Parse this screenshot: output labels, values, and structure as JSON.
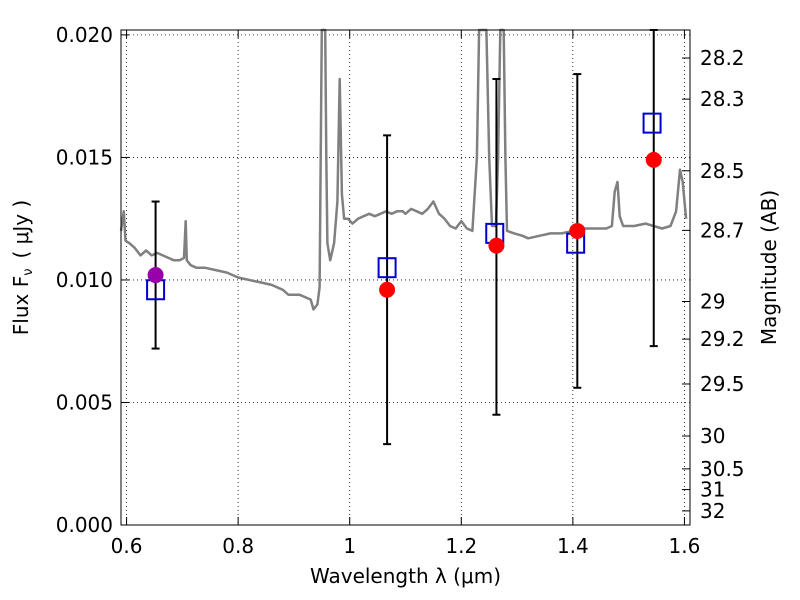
{
  "chart_data": {
    "type": "scatter",
    "xlabel": "Wavelength  λ (μm)",
    "ylabel_left": "Flux  F",
    "ylabel_left_sub": "ν",
    "ylabel_left_unit": "( μJy )",
    "ylabel_right": "Magnitude (AB)",
    "xlim": [
      0.59,
      1.61
    ],
    "ylim": [
      0.0,
      0.0202
    ],
    "grid": true,
    "x_ticks": [
      {
        "v": 0.6,
        "label": "0.6"
      },
      {
        "v": 0.8,
        "label": "0.8"
      },
      {
        "v": 1.0,
        "label": "1"
      },
      {
        "v": 1.2,
        "label": "1.2"
      },
      {
        "v": 1.4,
        "label": "1.4"
      },
      {
        "v": 1.6,
        "label": "1.6"
      }
    ],
    "y_ticks": [
      {
        "v": 0.0,
        "label": "0.000"
      },
      {
        "v": 0.005,
        "label": "0.005"
      },
      {
        "v": 0.01,
        "label": "0.010"
      },
      {
        "v": 0.015,
        "label": "0.015"
      },
      {
        "v": 0.02,
        "label": "0.020"
      }
    ],
    "right_ticks": [
      {
        "mag": 28.2,
        "label": "28.2"
      },
      {
        "mag": 28.3,
        "label": "28.3"
      },
      {
        "mag": 28.5,
        "label": "28.5"
      },
      {
        "mag": 28.7,
        "label": "28.7"
      },
      {
        "mag": 29.0,
        "label": "29"
      },
      {
        "mag": 29.2,
        "label": "29.2"
      },
      {
        "mag": 29.5,
        "label": "29.5"
      },
      {
        "mag": 30.0,
        "label": "30"
      },
      {
        "mag": 30.5,
        "label": "30.5"
      },
      {
        "mag": 31.0,
        "label": "31"
      },
      {
        "mag": 32.0,
        "label": "32"
      }
    ],
    "colors": {
      "spectrum": "#808080",
      "errorbar": "#000000",
      "observed": "#ff0000",
      "observed_first": "#9900aa",
      "model": "#0000cc"
    },
    "spectrum": [
      [
        0.59,
        0.012
      ],
      [
        0.595,
        0.0128
      ],
      [
        0.598,
        0.0116
      ],
      [
        0.605,
        0.0115
      ],
      [
        0.615,
        0.0113
      ],
      [
        0.625,
        0.011
      ],
      [
        0.635,
        0.0112
      ],
      [
        0.645,
        0.011
      ],
      [
        0.655,
        0.0111
      ],
      [
        0.665,
        0.011
      ],
      [
        0.675,
        0.0109
      ],
      [
        0.685,
        0.0108
      ],
      [
        0.695,
        0.0108
      ],
      [
        0.703,
        0.0109
      ],
      [
        0.706,
        0.0124
      ],
      [
        0.708,
        0.0108
      ],
      [
        0.715,
        0.0106
      ],
      [
        0.725,
        0.0105
      ],
      [
        0.74,
        0.0105
      ],
      [
        0.76,
        0.0104
      ],
      [
        0.78,
        0.0103
      ],
      [
        0.8,
        0.0101
      ],
      [
        0.82,
        0.01
      ],
      [
        0.84,
        0.0099
      ],
      [
        0.86,
        0.0098
      ],
      [
        0.88,
        0.0096
      ],
      [
        0.89,
        0.0094
      ],
      [
        0.91,
        0.0094
      ],
      [
        0.92,
        0.0093
      ],
      [
        0.93,
        0.0092
      ],
      [
        0.935,
        0.0088
      ],
      [
        0.942,
        0.009
      ],
      [
        0.946,
        0.0097
      ],
      [
        0.948,
        0.015
      ],
      [
        0.95,
        0.0202
      ],
      [
        0.956,
        0.0202
      ],
      [
        0.958,
        0.015
      ],
      [
        0.96,
        0.0115
      ],
      [
        0.965,
        0.0108
      ],
      [
        0.972,
        0.0115
      ],
      [
        0.978,
        0.0132
      ],
      [
        0.982,
        0.0182
      ],
      [
        0.986,
        0.0135
      ],
      [
        0.99,
        0.0125
      ],
      [
        0.997,
        0.0125
      ],
      [
        1.005,
        0.0123
      ],
      [
        1.015,
        0.0125
      ],
      [
        1.025,
        0.0126
      ],
      [
        1.035,
        0.0127
      ],
      [
        1.045,
        0.0126
      ],
      [
        1.055,
        0.0127
      ],
      [
        1.065,
        0.0128
      ],
      [
        1.075,
        0.0127
      ],
      [
        1.085,
        0.0128
      ],
      [
        1.095,
        0.0128
      ],
      [
        1.1,
        0.0127
      ],
      [
        1.11,
        0.0129
      ],
      [
        1.12,
        0.0128
      ],
      [
        1.13,
        0.0127
      ],
      [
        1.14,
        0.0129
      ],
      [
        1.15,
        0.0132
      ],
      [
        1.16,
        0.0127
      ],
      [
        1.17,
        0.0125
      ],
      [
        1.18,
        0.0122
      ],
      [
        1.19,
        0.0121
      ],
      [
        1.2,
        0.0124
      ],
      [
        1.21,
        0.0121
      ],
      [
        1.22,
        0.012
      ],
      [
        1.228,
        0.015
      ],
      [
        1.232,
        0.0202
      ],
      [
        1.245,
        0.0202
      ],
      [
        1.25,
        0.015
      ],
      [
        1.255,
        0.0122
      ],
      [
        1.262,
        0.0122
      ],
      [
        1.266,
        0.015
      ],
      [
        1.27,
        0.0202
      ],
      [
        1.276,
        0.0202
      ],
      [
        1.279,
        0.015
      ],
      [
        1.282,
        0.012
      ],
      [
        1.295,
        0.0119
      ],
      [
        1.31,
        0.0118
      ],
      [
        1.32,
        0.0117
      ],
      [
        1.34,
        0.0118
      ],
      [
        1.36,
        0.0119
      ],
      [
        1.38,
        0.0119
      ],
      [
        1.4,
        0.012
      ],
      [
        1.42,
        0.0121
      ],
      [
        1.44,
        0.0121
      ],
      [
        1.46,
        0.0121
      ],
      [
        1.47,
        0.0122
      ],
      [
        1.475,
        0.0136
      ],
      [
        1.48,
        0.014
      ],
      [
        1.484,
        0.0126
      ],
      [
        1.49,
        0.0122
      ],
      [
        1.51,
        0.0122
      ],
      [
        1.53,
        0.0123
      ],
      [
        1.56,
        0.0121
      ],
      [
        1.575,
        0.0122
      ],
      [
        1.585,
        0.0128
      ],
      [
        1.592,
        0.0145
      ],
      [
        1.597,
        0.014
      ],
      [
        1.603,
        0.0125
      ]
    ],
    "observed": [
      {
        "x": 0.652,
        "y": 0.0102,
        "yerr_low": 0.0072,
        "yerr_high": 0.0132
      },
      {
        "x": 1.067,
        "y": 0.0096,
        "yerr_low": 0.0033,
        "yerr_high": 0.0159
      },
      {
        "x": 1.263,
        "y": 0.0114,
        "yerr_low": 0.0045,
        "yerr_high": 0.0182
      },
      {
        "x": 1.408,
        "y": 0.012,
        "yerr_low": 0.0056,
        "yerr_high": 0.0184
      },
      {
        "x": 1.545,
        "y": 0.0149,
        "yerr_low": 0.0073,
        "yerr_high": 0.0202
      }
    ],
    "model": [
      {
        "x": 0.652,
        "y": 0.0096
      },
      {
        "x": 1.067,
        "y": 0.0105
      },
      {
        "x": 1.26,
        "y": 0.0119
      },
      {
        "x": 1.405,
        "y": 0.0115
      },
      {
        "x": 1.542,
        "y": 0.0164
      }
    ]
  }
}
